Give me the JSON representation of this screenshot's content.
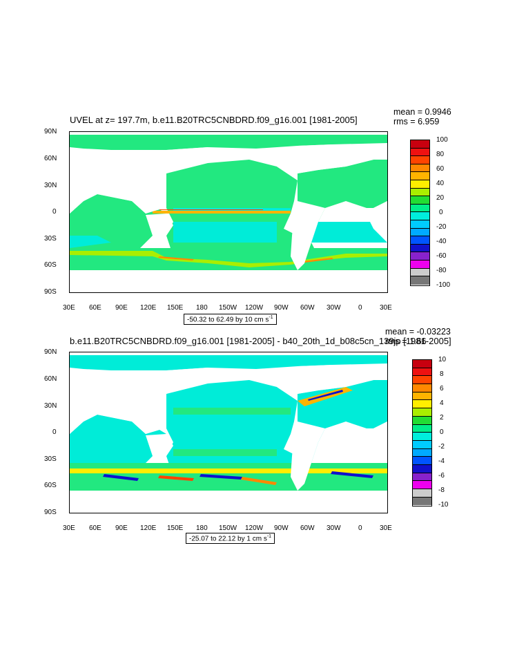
{
  "panel1": {
    "title": "UVEL at z= 197.7m, b.e11.B20TRC5CNBDRD.f09_g16.001 [1981-2005]",
    "mean": "mean = 0.9946",
    "rms": "rms = 6.959",
    "range_text": "-50.32 to 62.49 by 10 cm s",
    "range_unit_exp": "-1",
    "colorbar_labels": [
      "100",
      "80",
      "60",
      "40",
      "20",
      "0",
      "-20",
      "-40",
      "-60",
      "-80",
      "-100"
    ]
  },
  "panel2": {
    "title": "b.e11.B20TRC5CNBDRD.f09_g16.001 [1981-2005] - b40_20th_1d_b08c5cn_139jp [1981-2005]",
    "mean": "mean = -0.03223",
    "rms": "rms = 1.66",
    "range_text": "-25.07 to 22.12 by 1 cm s",
    "range_unit_exp": "-1",
    "colorbar_labels": [
      "10",
      "8",
      "6",
      "4",
      "2",
      "0",
      "-2",
      "-4",
      "-6",
      "-8",
      "-10"
    ]
  },
  "axes": {
    "lat_labels": [
      "90N",
      "60N",
      "30N",
      "0",
      "30S",
      "60S",
      "90S"
    ],
    "lon_labels": [
      "30E",
      "60E",
      "90E",
      "120E",
      "150E",
      "180",
      "150W",
      "120W",
      "90W",
      "60W",
      "30W",
      "0",
      "30E"
    ]
  },
  "colors": {
    "palette": [
      "#c8000f",
      "#ee1111",
      "#ff4400",
      "#ff8800",
      "#ffb400",
      "#ffee00",
      "#aaee00",
      "#22dd33",
      "#00ee88",
      "#00eedd",
      "#00ccff",
      "#00aaff",
      "#0055ff",
      "#1111cc",
      "#8822cc",
      "#ee00ee",
      "#cccccc",
      "#777777"
    ],
    "land": "#ffffff",
    "ocean_main": "#22e880",
    "ocean_cyan": "#00ecd8"
  }
}
